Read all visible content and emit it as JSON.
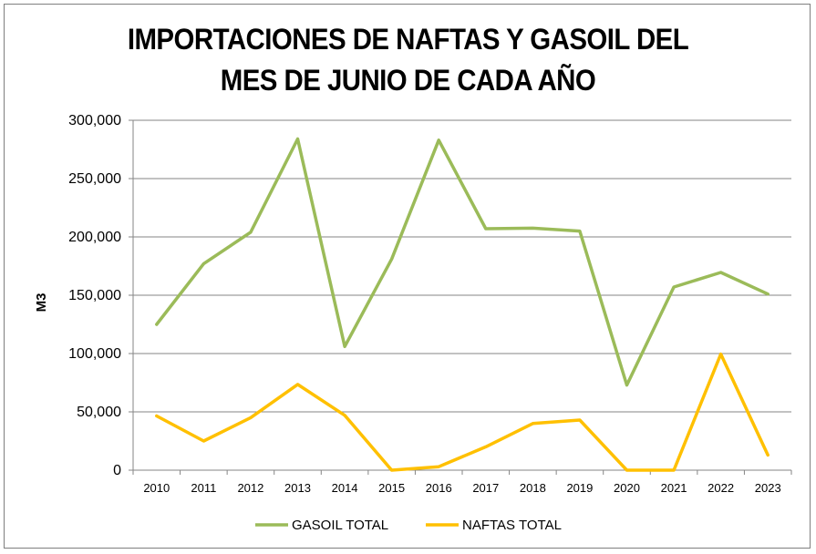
{
  "chart_data": {
    "type": "line",
    "title_lines": [
      "IMPORTACIONES DE NAFTAS Y GASOIL DEL",
      "MES DE JUNIO DE CADA AÑO"
    ],
    "xlabel": "",
    "ylabel": "M3",
    "ylim": [
      0,
      300000
    ],
    "yticks": [
      0,
      50000,
      100000,
      150000,
      200000,
      250000,
      300000
    ],
    "ytick_labels": [
      "0",
      "50,000",
      "100,000",
      "150,000",
      "200,000",
      "250,000",
      "300,000"
    ],
    "grid": true,
    "legend_position": "bottom",
    "categories": [
      "2010",
      "2011",
      "2012",
      "2013",
      "2014",
      "2015",
      "2016",
      "2017",
      "2018",
      "2019",
      "2020",
      "2021",
      "2022",
      "2023"
    ],
    "series": [
      {
        "name": "GASOIL TOTAL",
        "color": "#9bbb59",
        "values": [
          125000,
          177000,
          204000,
          284000,
          106000,
          181000,
          283000,
          207000,
          207500,
          205000,
          73000,
          157000,
          169500,
          151000
        ]
      },
      {
        "name": "NAFTAS TOTAL",
        "color": "#ffc000",
        "values": [
          46500,
          25000,
          45000,
          73500,
          47000,
          0,
          3000,
          20000,
          40000,
          43000,
          0,
          0,
          99500,
          13000
        ]
      }
    ]
  }
}
